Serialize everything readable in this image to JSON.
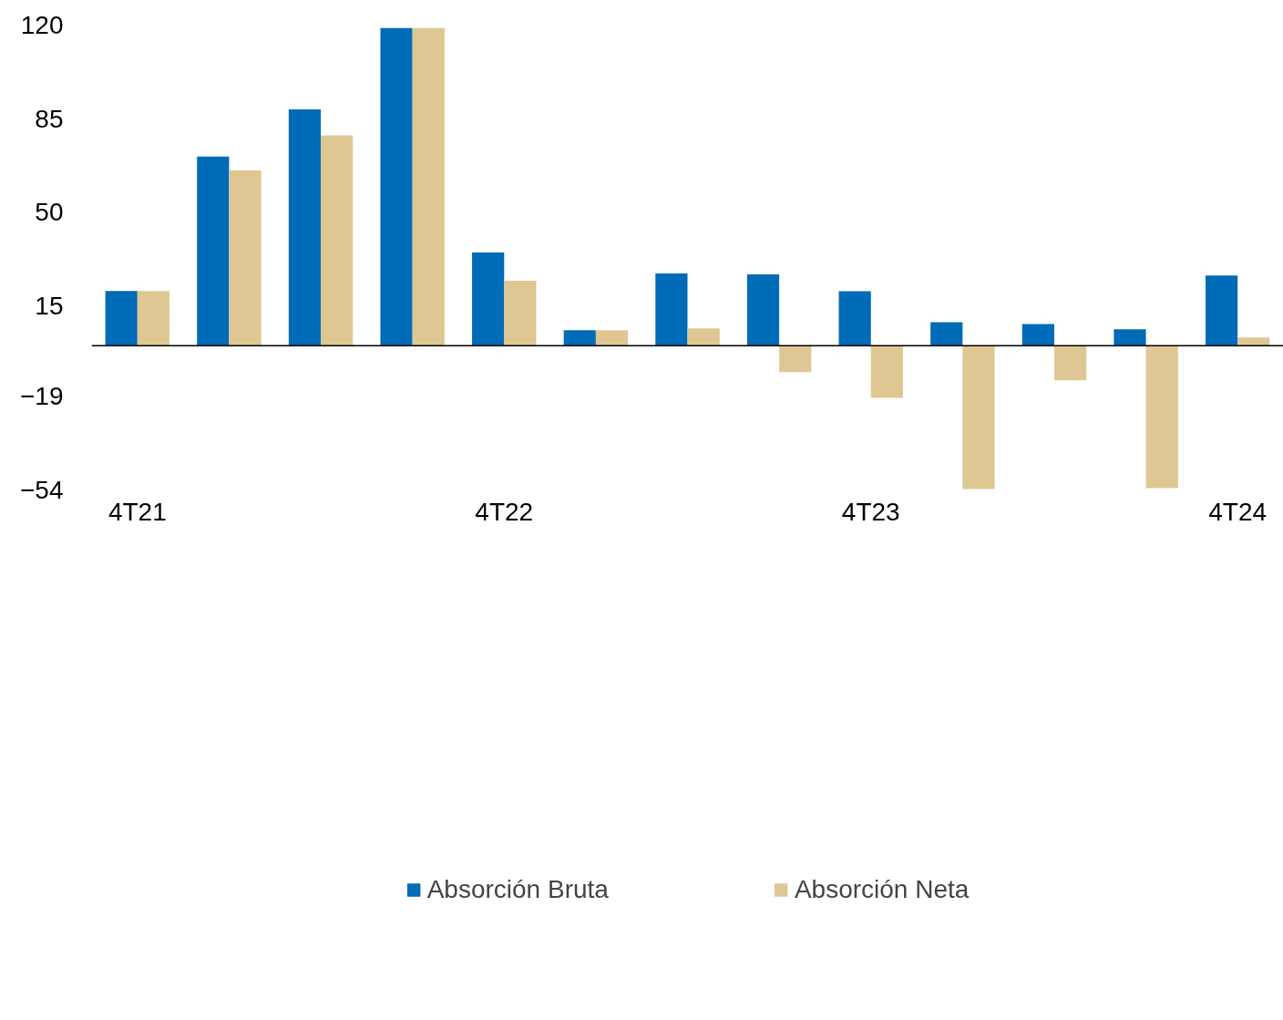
{
  "chart_data": {
    "type": "bar",
    "categories": [
      "4T21",
      null,
      null,
      null,
      "4T22",
      null,
      null,
      null,
      "4T23",
      null,
      null,
      null,
      "4T24"
    ],
    "series": [
      {
        "name": "Absorción Bruta",
        "color": "#006bb6",
        "values": [
          20.5,
          70.8,
          88.4,
          118.9,
          34.9,
          5.8,
          27.0,
          26.7,
          20.4,
          8.8,
          8.1,
          6.1,
          26.3
        ]
      },
      {
        "name": "Absorción Neta",
        "color": "#dfc793",
        "values": [
          20.5,
          65.7,
          78.7,
          118.9,
          24.3,
          5.8,
          6.5,
          -9.9,
          -19.5,
          -53.7,
          -13.0,
          -53.3,
          3.1
        ]
      }
    ],
    "ylim": [
      -54,
      120
    ],
    "yticks": [
      -54,
      -19,
      15,
      50,
      85,
      120
    ],
    "grid": false,
    "legend": "bottom"
  }
}
